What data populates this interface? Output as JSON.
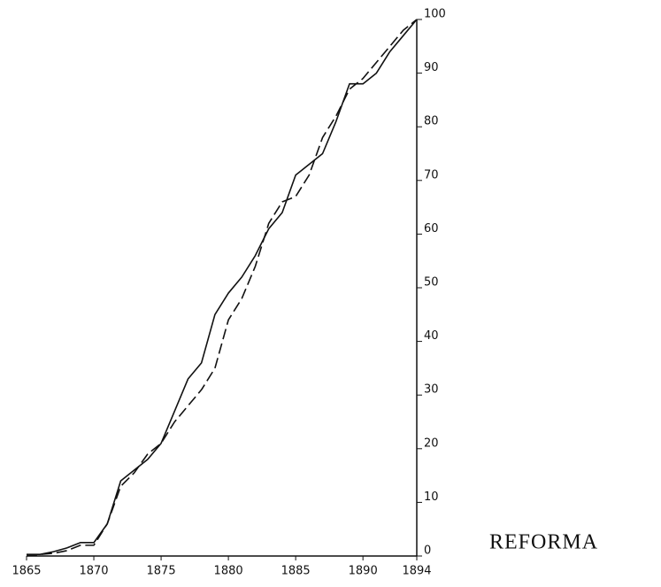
{
  "chart_data": {
    "type": "line",
    "annotation": "REFORMA",
    "x": [
      1865,
      1866,
      1867,
      1868,
      1869,
      1870,
      1871,
      1872,
      1873,
      1874,
      1875,
      1876,
      1877,
      1878,
      1879,
      1880,
      1881,
      1882,
      1883,
      1884,
      1885,
      1886,
      1887,
      1888,
      1889,
      1890,
      1891,
      1892,
      1893,
      1894
    ],
    "series": [
      {
        "color": "#111111",
        "dashed": false,
        "values": [
          0.3,
          0.3,
          0.8,
          1.5,
          2.5,
          2.5,
          6,
          14,
          16,
          18,
          21,
          27,
          33,
          36,
          45,
          49,
          52,
          56,
          61,
          64,
          71,
          73,
          75,
          81,
          88,
          88,
          90,
          94,
          97,
          100
        ]
      },
      {
        "color": "#111111",
        "dashed": true,
        "values": [
          0,
          0.3,
          0.5,
          1,
          2,
          2,
          6,
          13,
          15.5,
          19,
          21,
          25,
          28,
          31,
          35,
          44,
          48,
          54,
          62,
          66,
          67,
          71,
          78,
          82,
          87,
          89,
          92,
          95,
          98,
          100
        ]
      }
    ],
    "xlim": [
      1865,
      1894
    ],
    "xticks": [
      1865,
      1870,
      1875,
      1880,
      1885,
      1890,
      1894
    ],
    "ylim": [
      0,
      100
    ],
    "yticks": [
      0,
      10,
      20,
      30,
      40,
      50,
      60,
      70,
      80,
      90,
      100
    ],
    "yaxis_side": "right",
    "grid": false
  }
}
